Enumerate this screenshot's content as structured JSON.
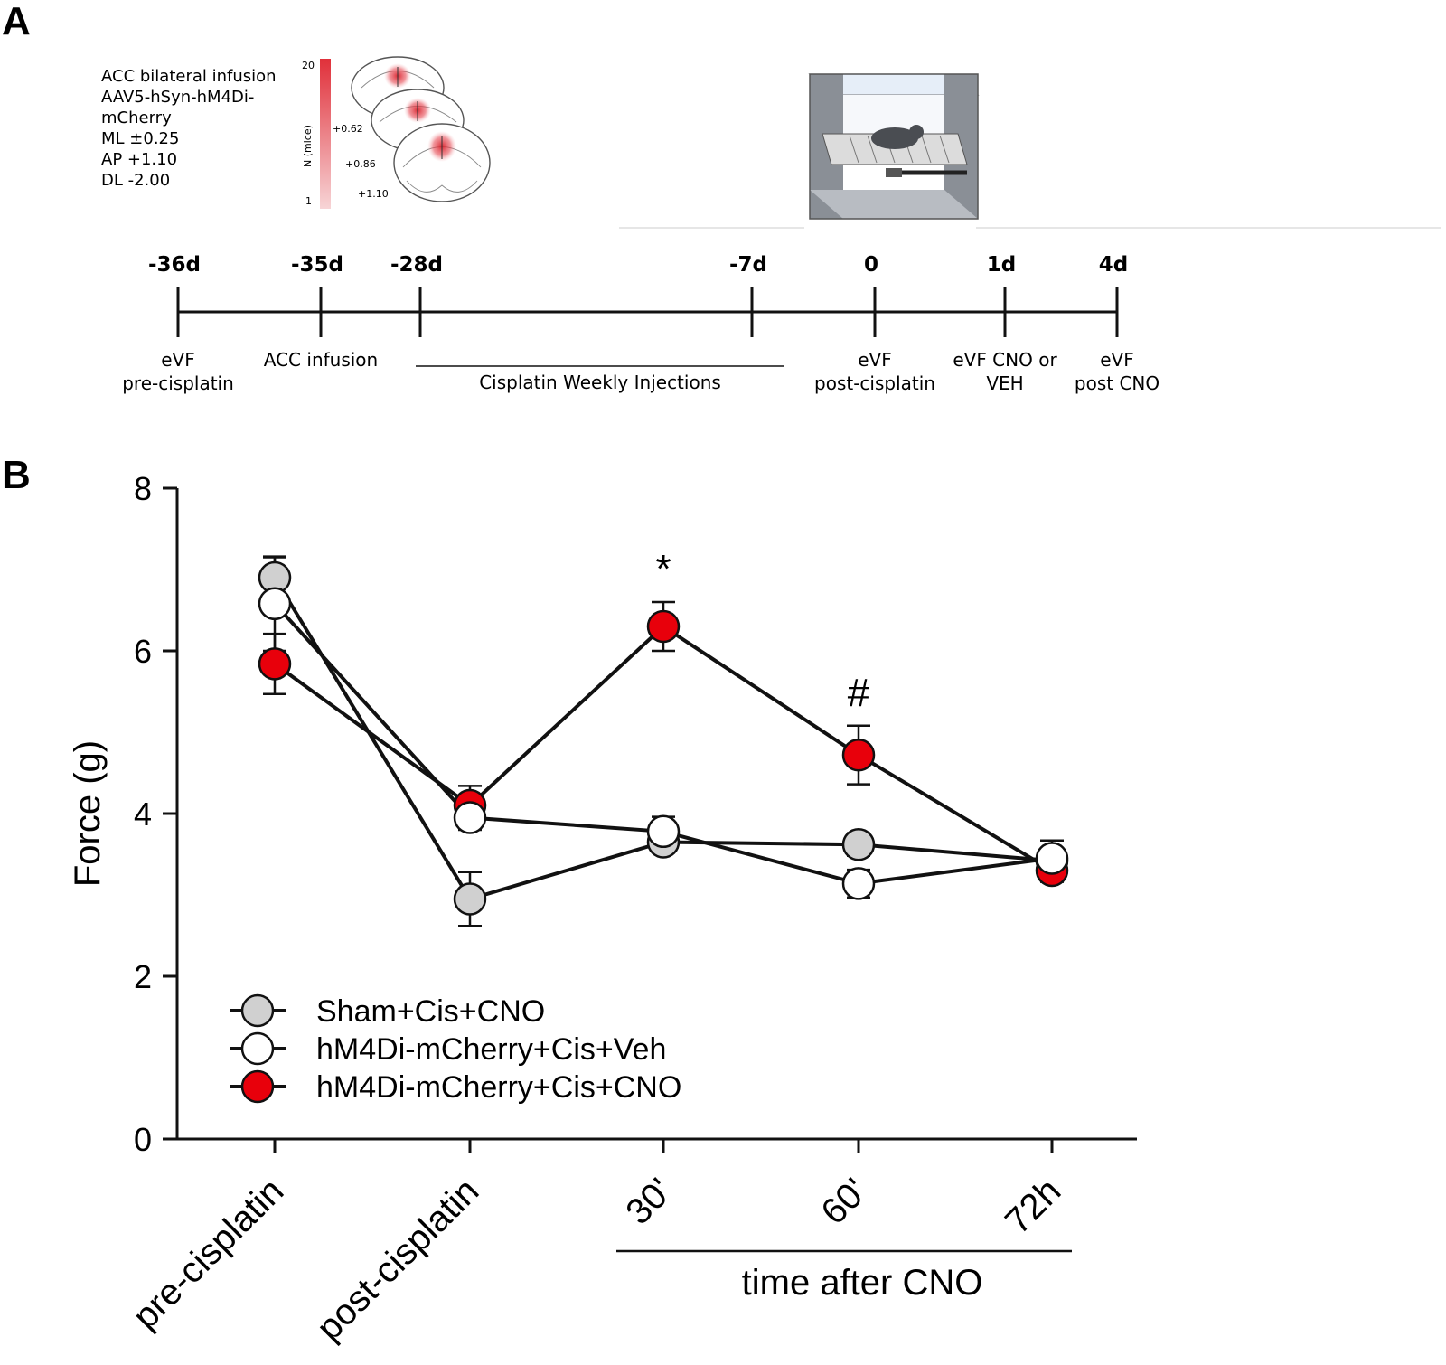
{
  "panels": {
    "a": "A",
    "b": "B"
  },
  "panel_a": {
    "protocol_lines": [
      "ACC bilateral infusion",
      "AAV5-hSyn-hM4Di-",
      "mCherry",
      "ML ±0.25",
      "AP +1.10",
      "DL -2.00"
    ],
    "scale_max": "20",
    "scale_min": "1",
    "scale_label": "N (mice)",
    "section_labels": [
      "+0.62",
      "+0.86",
      "+1.10"
    ],
    "timeline": {
      "points": [
        {
          "top": "-36d",
          "bottom": [
            "eVF",
            "pre-cisplatin"
          ]
        },
        {
          "top": "-35d",
          "bottom": [
            "ACC infusion"
          ]
        },
        {
          "top": "-28d",
          "bottom": []
        },
        {
          "top": "-7d",
          "bottom": []
        },
        {
          "top": "0",
          "bottom": [
            "eVF",
            "post-cisplatin"
          ]
        },
        {
          "top": "1d",
          "bottom": [
            "eVF CNO or",
            "VEH"
          ]
        },
        {
          "top": "4d",
          "bottom": [
            "eVF",
            "post CNO"
          ]
        }
      ],
      "range_label": "Cisplatin Weekly Injections"
    },
    "colors": {
      "heat_high": "#e0303a",
      "heat_low": "#f7d4d6"
    }
  },
  "chart_data": {
    "type": "line",
    "categories": [
      "pre-cisplatin",
      "post-cisplatin",
      "30'",
      "60'",
      "72h"
    ],
    "xlabel_group": "time after CNO",
    "ylabel": "Force (g)",
    "ylim": [
      0,
      8
    ],
    "yticks": [
      "0",
      "2",
      "4",
      "6",
      "8"
    ],
    "series": [
      {
        "name": "Sham+Cis+CNO",
        "fill": "#d0d0d0",
        "values": [
          6.9,
          2.95,
          3.65,
          3.62,
          3.42
        ],
        "errors": [
          0.25,
          0.33,
          0.12,
          0.14,
          0.15
        ]
      },
      {
        "name": "hM4Di-mCherry+Cis+Veh",
        "fill": "#ffffff",
        "values": [
          6.58,
          3.95,
          3.78,
          3.14,
          3.45
        ],
        "errors": [
          0.58,
          0.15,
          0.18,
          0.17,
          0.22
        ]
      },
      {
        "name": "hM4Di-mCherry+Cis+CNO",
        "fill": "#e8000b",
        "values": [
          5.84,
          4.1,
          6.3,
          4.72,
          3.3
        ],
        "errors": [
          0.37,
          0.24,
          0.3,
          0.36,
          0.14
        ]
      }
    ],
    "annotations": [
      {
        "text": "*",
        "category_index": 2
      },
      {
        "text": "#",
        "category_index": 3
      }
    ],
    "legend": "bottom-left"
  }
}
